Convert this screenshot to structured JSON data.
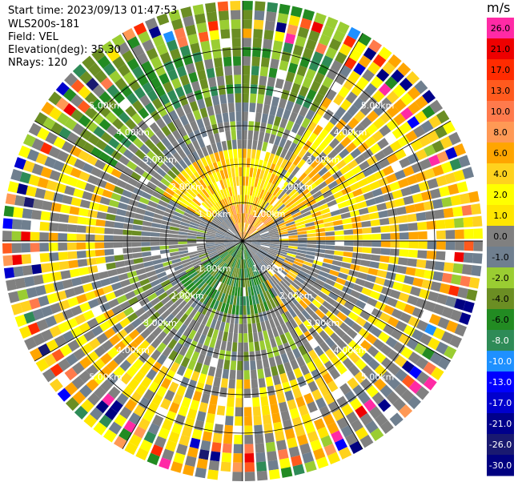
{
  "header": {
    "start_time": "Start time: 2023/09/13 01:47:53",
    "instrument": "WLS200s-181",
    "field": "Field: VEL",
    "elevation": "Elevation(deg): 35.30",
    "nrays": "NRays: 120"
  },
  "colorbar": {
    "unit": "m/s",
    "ticks": [
      "26.0",
      "21.0",
      "17.0",
      "13.0",
      "10.0",
      "8.0",
      "6.0",
      "4.0",
      "2.0",
      "1.0",
      "0.0",
      "-1.0",
      "-2.0",
      "-4.0",
      "-6.0",
      "-8.0",
      "-10.0",
      "-13.0",
      "-17.0",
      "-21.0",
      "-26.0",
      "-30.0"
    ],
    "colors": [
      "#ff2aa5",
      "#ee0000",
      "#ff2b00",
      "#ff5a1e",
      "#ff7a4c",
      "#ff9955",
      "#ffa500",
      "#ffd21e",
      "#ffff00",
      "#ffe600",
      "#808080",
      "#6f7f8f",
      "#9acd32",
      "#6b8e23",
      "#228b22",
      "#2e8b57",
      "#1e90ff",
      "#0000ff",
      "#0000cd",
      "#00008b",
      "#191970",
      "#000080"
    ]
  },
  "chart_data": {
    "type": "ppi",
    "field": "VEL",
    "units": "m/s",
    "nrays": 120,
    "elevation_deg": 35.3,
    "vmin": -30.0,
    "vmax": 26.0,
    "range_rings_km": [
      1.0,
      2.0,
      3.0,
      4.0,
      5.0
    ],
    "ring_labels": [
      "1.00km",
      "2.00km",
      "3.00km",
      "4.00km",
      "5.00km"
    ],
    "max_range_km": 6.25,
    "spokes_deg": [
      0,
      30,
      60,
      90,
      120,
      150,
      180,
      210,
      240,
      270,
      300,
      330
    ],
    "sector_pattern": [
      {
        "az_from": 0,
        "az_to": 30,
        "near": "yellow",
        "mid": "gray",
        "far": "green/mixed"
      },
      {
        "az_from": 30,
        "az_to": 90,
        "near": "yellow",
        "mid": "yellow/gray",
        "far": "mixed"
      },
      {
        "az_from": 90,
        "az_to": 150,
        "near": "gray",
        "mid": "gray",
        "far": "yellow/mixed"
      },
      {
        "az_from": 150,
        "az_to": 240,
        "near": "green",
        "mid": "olive/gray",
        "far": "yellow"
      },
      {
        "az_from": 240,
        "az_to": 300,
        "near": "gray",
        "mid": "gray",
        "far": "yellow/mixed"
      },
      {
        "az_from": 300,
        "az_to": 360,
        "near": "yellow",
        "mid": "gray",
        "far": "green"
      }
    ]
  }
}
